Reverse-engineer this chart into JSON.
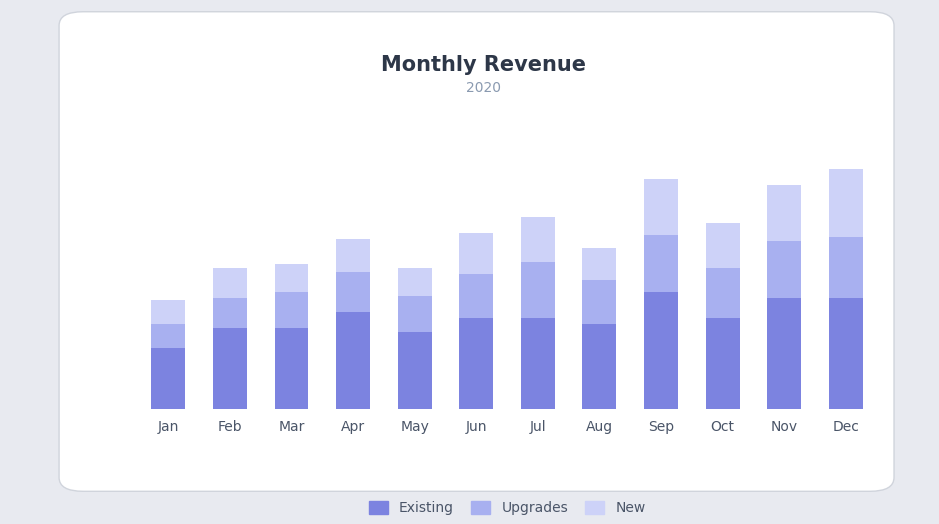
{
  "title": "Monthly Revenue",
  "subtitle": "2020",
  "months": [
    "Jan",
    "Feb",
    "Mar",
    "Apr",
    "May",
    "Jun",
    "Jul",
    "Aug",
    "Sep",
    "Oct",
    "Nov",
    "Dec"
  ],
  "existing": [
    30,
    40,
    40,
    48,
    38,
    45,
    45,
    42,
    58,
    45,
    55,
    55
  ],
  "upgrades": [
    12,
    15,
    18,
    20,
    18,
    22,
    28,
    22,
    28,
    25,
    28,
    30
  ],
  "new": [
    12,
    15,
    14,
    16,
    14,
    20,
    22,
    16,
    28,
    22,
    28,
    34
  ],
  "color_existing": "#7c83e0",
  "color_upgrades": "#a8b0f0",
  "color_new": "#cdd2f8",
  "background_card": "#ffffff",
  "background_outer": "#e8eaf0",
  "title_color": "#2d3748",
  "subtitle_color": "#8a9ab0",
  "label_color": "#4a5568",
  "legend_label_color": "#4a5568",
  "bar_width": 0.55,
  "title_fontsize": 15,
  "subtitle_fontsize": 10,
  "tick_fontsize": 10,
  "legend_fontsize": 10
}
